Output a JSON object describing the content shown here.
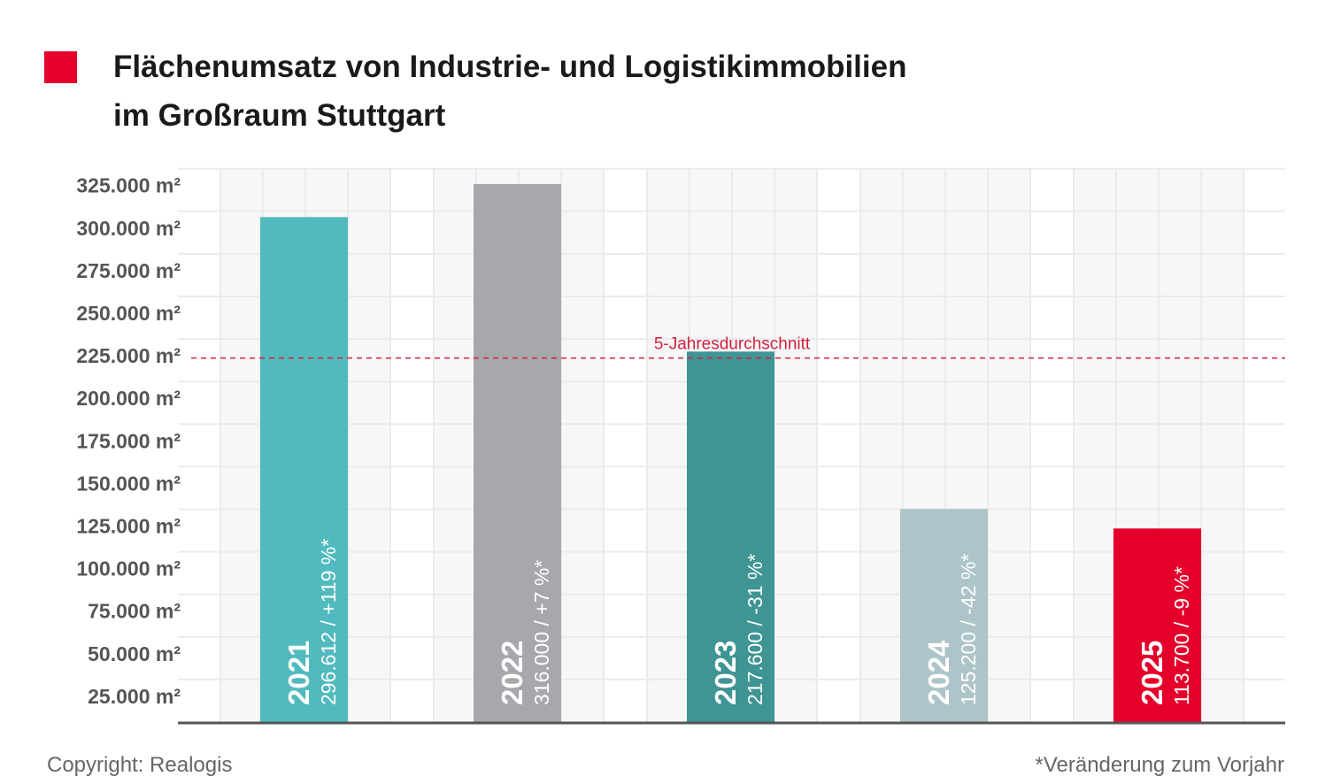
{
  "title": {
    "line1": "Flächenumsatz von Industrie- und Logistikimmobilien",
    "line2": "im Großraum Stuttgart",
    "marker_color": "#e4002b"
  },
  "footer": {
    "copyright": "Copyright: Realogis",
    "footnote": "*Veränderung zum Vorjahr"
  },
  "chart_data": {
    "type": "bar",
    "title": "Flächenumsatz von Industrie- und Logistikimmobilien im Großraum Stuttgart",
    "categories": [
      "2021",
      "2022",
      "2023",
      "2024",
      "2025"
    ],
    "values": [
      296612,
      316000,
      217600,
      125200,
      113700
    ],
    "bar_labels": [
      "296.612 / +119 %*",
      "316.000 / +7 %*",
      "217.600 / -31 %*",
      "125.200 / -42 %*",
      "113.700 / -9 %*"
    ],
    "colors": [
      "#50babe",
      "#a7a8ac",
      "#3f9494",
      "#adc5c8",
      "#e4002b"
    ],
    "ylim": [
      0,
      325000
    ],
    "yticks": [
      25000,
      50000,
      75000,
      100000,
      125000,
      150000,
      175000,
      200000,
      225000,
      250000,
      275000,
      300000,
      325000
    ],
    "ytick_labels": [
      "25.000 m²",
      "50.000 m²",
      "75.000 m²",
      "100.000 m²",
      "125.000 m²",
      "150.000 m²",
      "175.000 m²",
      "200.000 m²",
      "225.000 m²",
      "250.000 m²",
      "275.000 m²",
      "300.000 m²",
      "325.000 m²"
    ],
    "grid": true,
    "reference_line": {
      "label": "5-Jahresdurchschnitt",
      "value": 213822,
      "color": "#d0213f"
    }
  }
}
